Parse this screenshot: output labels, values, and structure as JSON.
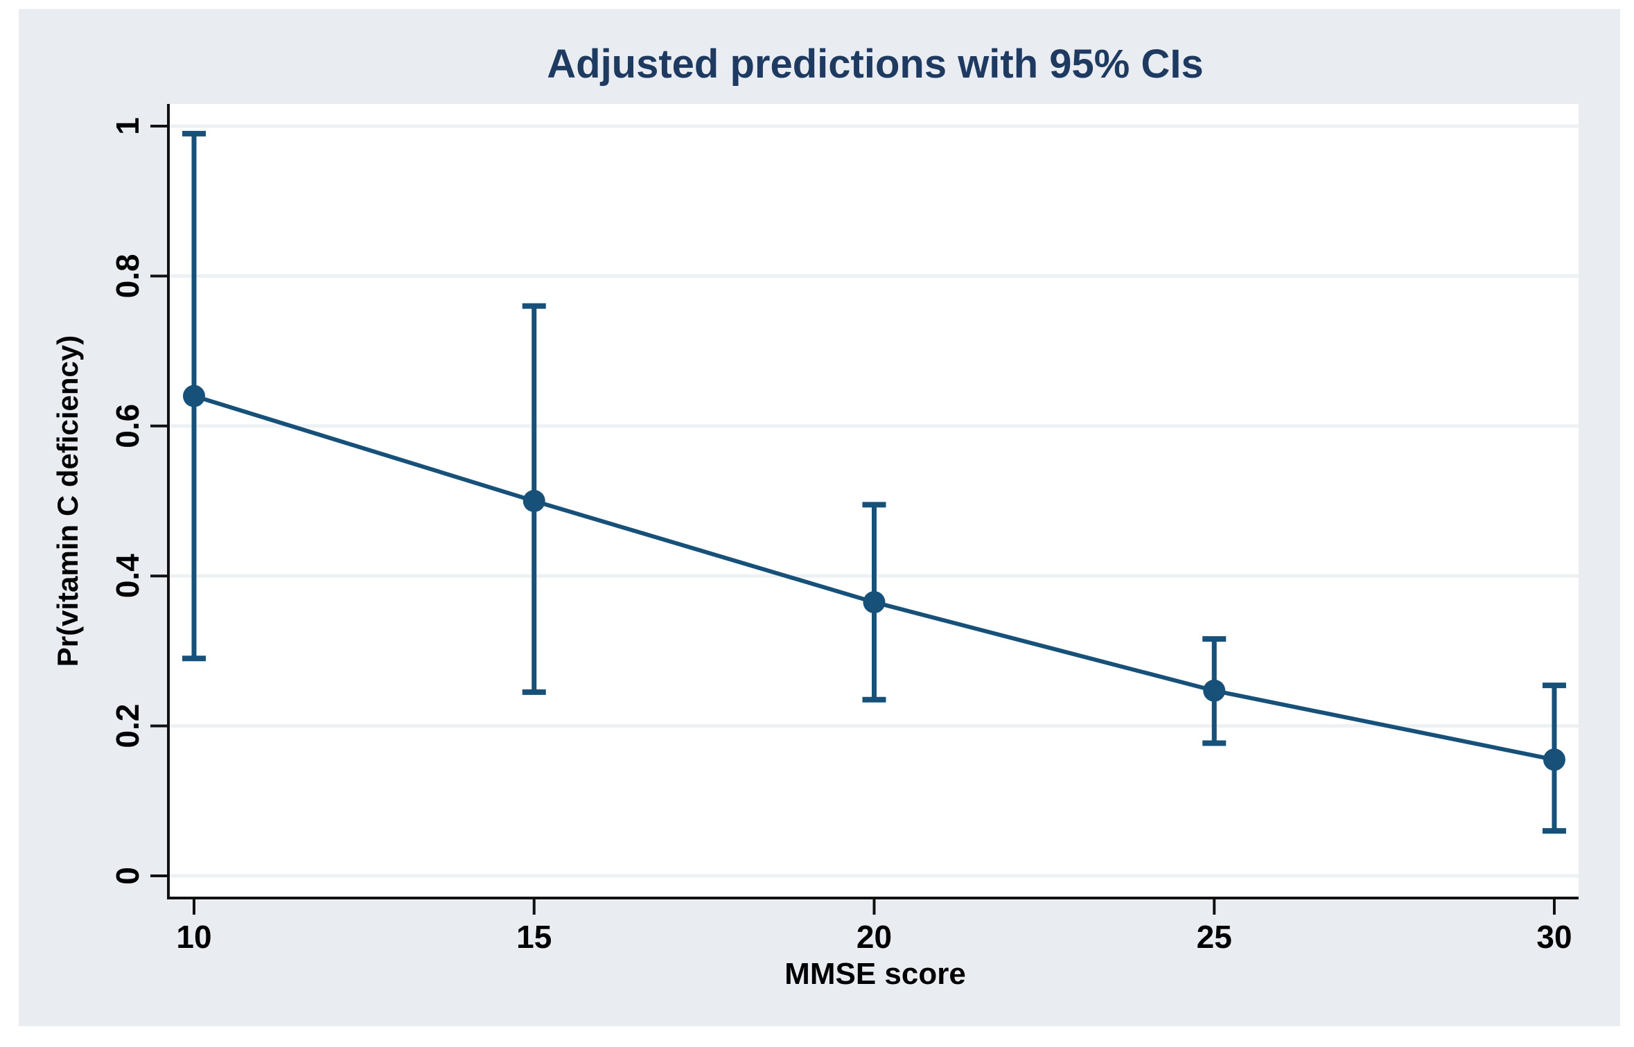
{
  "figure": {
    "title": "Adjusted predictions with 95% CIs",
    "x_axis_label": "MMSE score",
    "y_axis_label": "Pr(vitamin C deficiency)"
  },
  "chart_data": {
    "type": "line",
    "title": "Adjusted predictions with 95% CIs",
    "xlabel": "MMSE score",
    "ylabel": "Pr(vitamin C deficiency)",
    "x": [
      10,
      15,
      20,
      25,
      30
    ],
    "series": [
      {
        "name": "Adjusted prediction",
        "values": [
          0.64,
          0.5,
          0.365,
          0.247,
          0.155
        ]
      },
      {
        "name": "95% CI lower bound",
        "values": [
          0.29,
          0.245,
          0.235,
          0.177,
          0.06
        ]
      },
      {
        "name": "95% CI upper bound",
        "values": [
          0.99,
          0.76,
          0.495,
          0.316,
          0.254
        ]
      }
    ],
    "xticks": [
      "10",
      "15",
      "20",
      "25",
      "30"
    ],
    "xtick_values": [
      10,
      15,
      20,
      25,
      30
    ],
    "yticks": [
      "0",
      "0.2",
      "0.4",
      "0.6",
      "0.8",
      "1"
    ],
    "ytick_values": [
      0,
      0.2,
      0.4,
      0.6,
      0.8,
      1
    ],
    "xlim": [
      10,
      30
    ],
    "ylim": [
      0,
      1
    ],
    "grid": "horizontal",
    "legend_position": "none",
    "marker": "circle",
    "error_bars": "capped"
  },
  "colors": {
    "series": "#175078",
    "axis": "#111111",
    "tick_label": "#000000",
    "title": "#1f3a60",
    "panel_bg": "#e9edf2",
    "plot_bg": "#ffffff",
    "grid": "#eef1f4"
  }
}
